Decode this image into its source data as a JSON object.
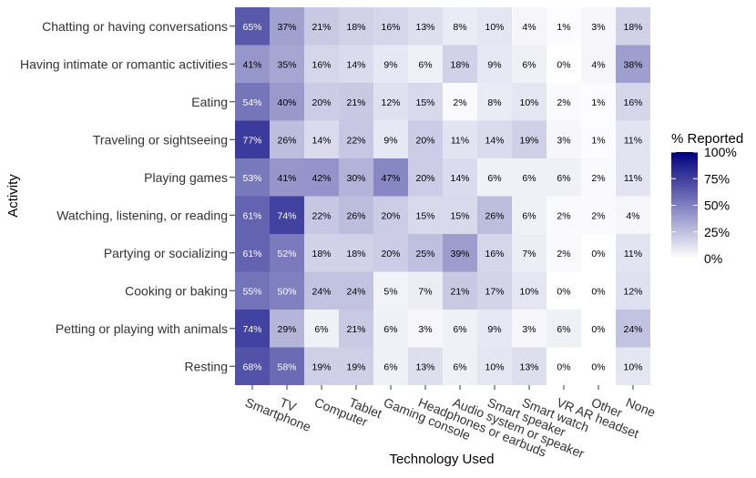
{
  "chart_data": {
    "type": "heatmap",
    "title": "",
    "xlabel": "Technology Used",
    "ylabel": "Activity",
    "x_categories": [
      "Smartphone",
      "TV",
      "Computer",
      "Tablet",
      "Gaming console",
      "Headphones or earbuds",
      "Audio system or speaker",
      "Smart speaker",
      "Smart watch",
      "VR AR headset",
      "Other",
      "None"
    ],
    "y_categories": [
      "Chatting or having conversations",
      "Having intimate or romantic activities",
      "Eating",
      "Traveling or sightseeing",
      "Playing games",
      "Watching, listening, or reading",
      "Partying or socializing",
      "Cooking or baking",
      "Petting or playing with animals",
      "Resting"
    ],
    "values": [
      [
        65,
        37,
        21,
        18,
        16,
        13,
        8,
        10,
        4,
        1,
        3,
        18
      ],
      [
        41,
        35,
        16,
        14,
        9,
        6,
        18,
        9,
        6,
        0,
        4,
        38
      ],
      [
        54,
        40,
        20,
        21,
        12,
        15,
        2,
        8,
        10,
        2,
        1,
        16
      ],
      [
        77,
        26,
        14,
        22,
        9,
        20,
        11,
        14,
        19,
        3,
        1,
        11
      ],
      [
        53,
        41,
        42,
        30,
        47,
        20,
        14,
        6,
        6,
        6,
        2,
        11
      ],
      [
        61,
        74,
        22,
        26,
        20,
        15,
        15,
        26,
        6,
        2,
        2,
        4
      ],
      [
        61,
        52,
        18,
        18,
        20,
        25,
        39,
        16,
        7,
        2,
        0,
        11
      ],
      [
        55,
        50,
        24,
        24,
        5,
        7,
        21,
        17,
        10,
        0,
        0,
        12
      ],
      [
        74,
        29,
        6,
        21,
        6,
        3,
        6,
        9,
        3,
        6,
        0,
        24
      ],
      [
        68,
        58,
        19,
        19,
        6,
        13,
        6,
        10,
        13,
        0,
        0,
        10
      ]
    ],
    "value_suffix": "%",
    "value_range": [
      0,
      100
    ],
    "legend": {
      "title": "% Reported",
      "ticks": [
        "100%",
        "75%",
        "50%",
        "25%",
        "0%"
      ],
      "tick_values": [
        100,
        75,
        50,
        25,
        0
      ],
      "placement": "right"
    },
    "colors": {
      "low": "#ffffff",
      "high": "#000080",
      "panel": "#ebebeb"
    }
  }
}
